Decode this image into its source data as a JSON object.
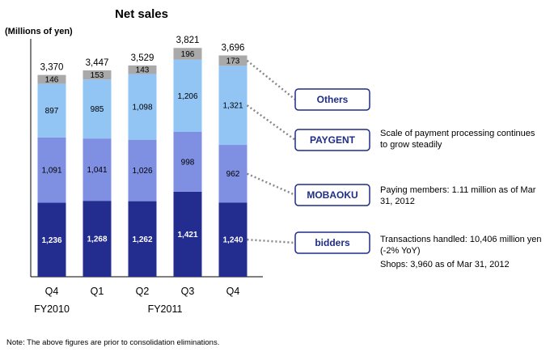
{
  "chart_data": {
    "type": "bar",
    "stacked": true,
    "title": "Net sales",
    "ylabel": "(Millions of yen)",
    "categories": [
      "Q4",
      "Q1",
      "Q2",
      "Q3",
      "Q4"
    ],
    "category_groups": [
      {
        "label": "FY2010",
        "categories": [
          0
        ]
      },
      {
        "label": "FY2011",
        "categories": [
          1,
          2,
          3,
          4
        ]
      }
    ],
    "series": [
      {
        "name": "bidders",
        "color": "#232c8f",
        "values": [
          1236,
          1268,
          1262,
          1421,
          1240
        ],
        "labels": [
          "1,236",
          "1,268",
          "1,262",
          "1,421",
          "1,240"
        ]
      },
      {
        "name": "MOBAOKU",
        "color": "#7f8fe2",
        "values": [
          1091,
          1041,
          1026,
          998,
          962
        ],
        "labels": [
          "1,091",
          "1,041",
          "1,026",
          "998",
          "962"
        ]
      },
      {
        "name": "PAYGENT",
        "color": "#92c4f4",
        "values": [
          897,
          985,
          1098,
          1206,
          1321
        ],
        "labels": [
          "897",
          "985",
          "1,098",
          "1,206",
          "1,321"
        ]
      },
      {
        "name": "Others",
        "color": "#a9a9a9",
        "values": [
          146,
          153,
          143,
          196,
          173
        ],
        "labels": [
          "146",
          "153",
          "143",
          "196",
          "173"
        ]
      }
    ],
    "totals": [
      "3,370",
      "3,447",
      "3,529",
      "3,821",
      "3,696"
    ],
    "ylim": [
      0,
      4000
    ],
    "grid": false,
    "legend": "right"
  },
  "legend_boxes": [
    {
      "series": "Others",
      "label": "Others"
    },
    {
      "series": "PAYGENT",
      "label": "PAYGENT"
    },
    {
      "series": "MOBAOKU",
      "label": "MOBAOKU"
    },
    {
      "series": "bidders",
      "label": "bidders"
    }
  ],
  "annotations": {
    "paygent": "Scale of payment processing continues to grow steadily",
    "mobaoku": "Paying members: 1.11 million as of Mar 31, 2012",
    "bidders_1": "Transactions handled: 10,406 million yen (-2% YoY)",
    "bidders_2": "Shops: 3,960 as of Mar 31, 2012"
  },
  "note": "Note: The above figures are prior to consolidation eliminations.",
  "colors": {
    "box_border": "#1f2d86",
    "connector": "#888888"
  }
}
